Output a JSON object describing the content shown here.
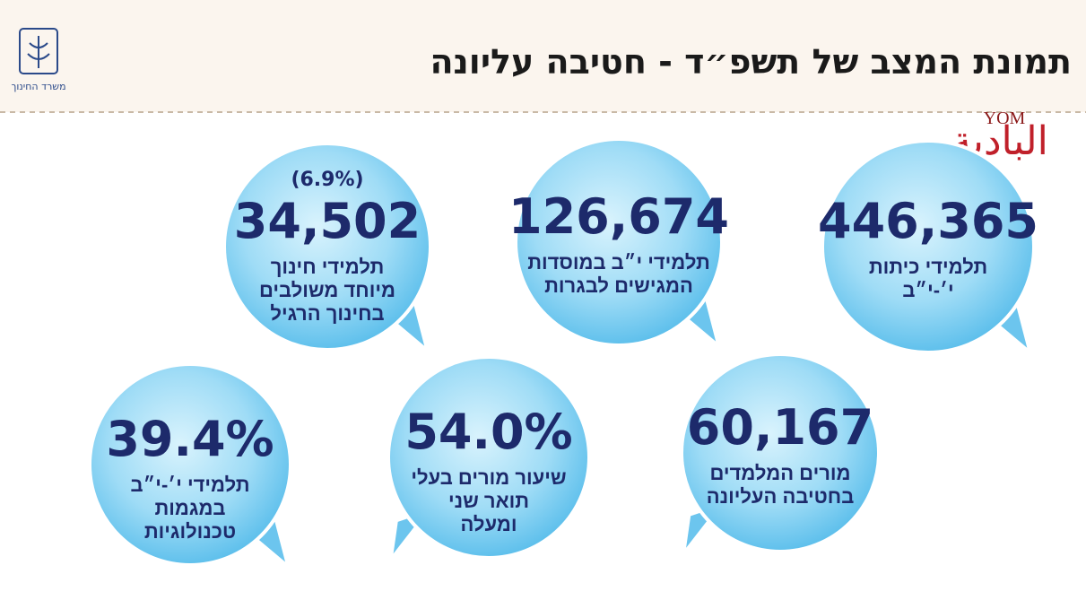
{
  "header": {
    "title": "תמונת המצב של תשפ״ד - חטיבה עליונה",
    "logo_text": "משרד החינוך",
    "watermark_latin": "YOM",
    "watermark_arabic": "البادية"
  },
  "bubbles": [
    {
      "number": "446,365",
      "label_lines": [
        "תלמידי כיתות",
        "י׳-י״ב"
      ]
    },
    {
      "number": "126,674",
      "label_lines": [
        "תלמידי י״ב במוסדות",
        "המגישים לבגרות"
      ]
    },
    {
      "note": "(6.9%)",
      "number": "34,502",
      "label_lines": [
        "תלמידי חינוך",
        "מיוחד משולבים",
        "בחינוך הרגיל"
      ]
    },
    {
      "number": "60,167",
      "label_lines": [
        "מורים המלמדים",
        "בחטיבה העליונה"
      ]
    },
    {
      "number": "54.0%",
      "label_lines": [
        "שיעור מורים בעלי",
        "תואר שני",
        "ומעלה"
      ]
    },
    {
      "number": "39.4%",
      "label_lines": [
        "תלמידי י׳-י״ב",
        "במגמות",
        "טכנולוגיות"
      ]
    }
  ]
}
